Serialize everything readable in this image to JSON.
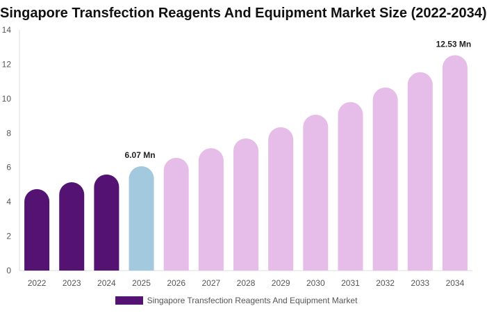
{
  "chart_data": {
    "type": "bar",
    "title": "Singapore Transfection Reagents And Equipment Market Size (2022-2034)",
    "categories": [
      "2022",
      "2023",
      "2024",
      "2025",
      "2026",
      "2027",
      "2028",
      "2029",
      "2030",
      "2031",
      "2032",
      "2033",
      "2034"
    ],
    "series": [
      {
        "name": "Singapore Transfection Reagents And Equipment Market",
        "values": [
          4.74,
          5.14,
          5.59,
          6.07,
          6.56,
          7.12,
          7.69,
          8.34,
          9.07,
          9.8,
          10.65,
          11.54,
          12.53
        ]
      }
    ],
    "data_labels": [
      {
        "index": 3,
        "text": "6.07 Mn"
      },
      {
        "index": 12,
        "text": "12.53 Mn"
      }
    ],
    "ylim": [
      0,
      14
    ],
    "yticks": [
      0,
      2,
      4,
      6,
      8,
      10,
      12,
      14
    ],
    "grid": false,
    "legend": "bottom",
    "colors": {
      "historical": "#541273",
      "current": "#a3c9de",
      "forecast": "#e6bde8"
    },
    "bar_color_groups": [
      "historical",
      "historical",
      "historical",
      "current",
      "forecast",
      "forecast",
      "forecast",
      "forecast",
      "forecast",
      "forecast",
      "forecast",
      "forecast",
      "forecast"
    ]
  }
}
